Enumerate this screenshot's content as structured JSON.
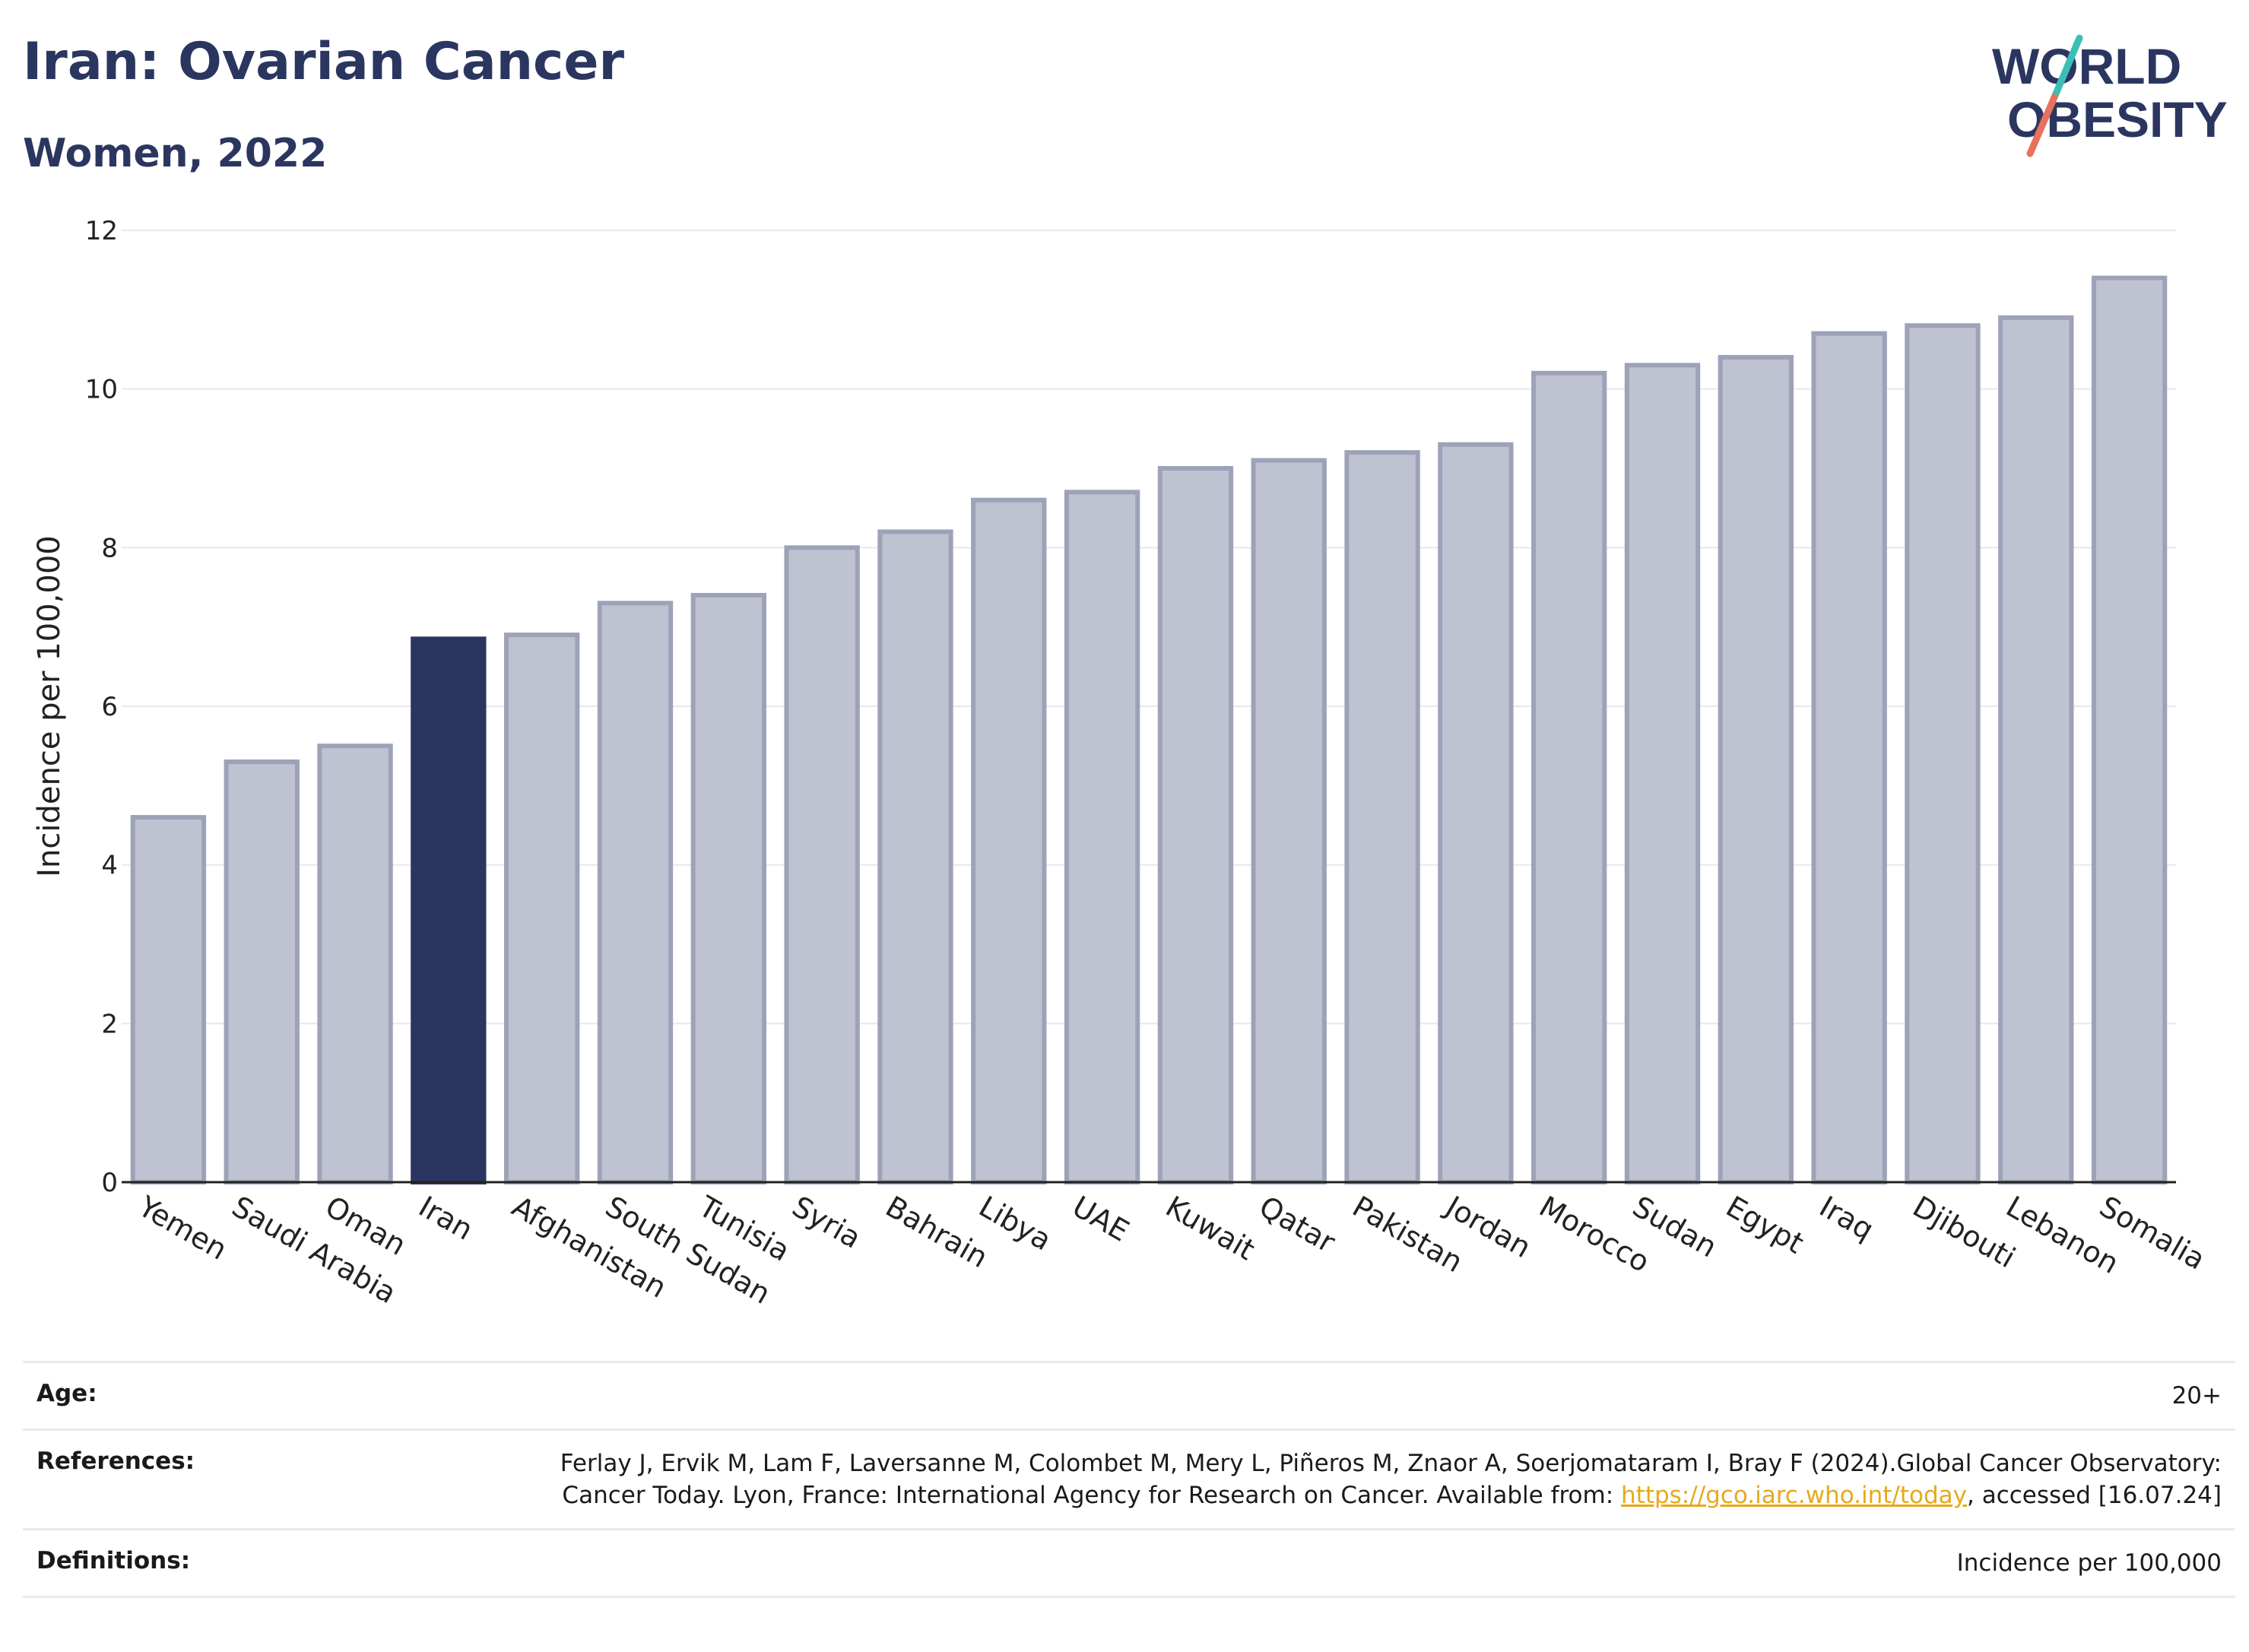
{
  "header": {
    "title": "Iran: Ovarian Cancer",
    "subtitle": "Women, 2022"
  },
  "logo": {
    "line1": "WORLD",
    "line2": "OBESITY",
    "slash_colors": [
      "#3bbfb5",
      "#e8715e"
    ]
  },
  "colors": {
    "highlight": "#2b3660",
    "bar": "#bfc2d0",
    "bar_border": "#9da2b8",
    "accent_link": "#e6a91c"
  },
  "chart_data": {
    "type": "bar",
    "title": "Iran: Ovarian Cancer",
    "subtitle": "Women, 2022",
    "xlabel": "",
    "ylabel": "Incidence per 100,000",
    "ylim": [
      0,
      12
    ],
    "yticks": [
      0,
      2,
      4,
      6,
      8,
      10,
      12
    ],
    "grid": true,
    "highlight": "Iran",
    "categories": [
      "Yemen",
      "Saudi Arabia",
      "Oman",
      "Iran",
      "Afghanistan",
      "South Sudan",
      "Tunisia",
      "Syria",
      "Bahrain",
      "Libya",
      "UAE",
      "Kuwait",
      "Qatar",
      "Pakistan",
      "Jordan",
      "Morocco",
      "Sudan",
      "Egypt",
      "Iraq",
      "Djibouti",
      "Lebanon",
      "Somalia"
    ],
    "values": [
      4.6,
      5.3,
      5.5,
      6.85,
      6.9,
      7.3,
      7.4,
      8.0,
      8.2,
      8.6,
      8.7,
      9.0,
      9.1,
      9.2,
      9.3,
      10.2,
      10.3,
      10.4,
      10.7,
      10.8,
      10.9,
      11.4
    ]
  },
  "info": {
    "age_label": "Age:",
    "age_value": "20+",
    "references_label": "References:",
    "references_text_1": "Ferlay J, Ervik M, Lam F, Laversanne M, Colombet M, Mery L, Piñeros M, Znaor A, Soerjomataram I, Bray F (2024).Global Cancer Observatory: Cancer Today. Lyon, France: International Agency for Research on Cancer. Available from: ",
    "references_link": "https://gco.iarc.who.int/today",
    "references_text_2": ", accessed [16.07.24]",
    "definitions_label": "Definitions:",
    "definitions_value": "Incidence per 100,000"
  }
}
